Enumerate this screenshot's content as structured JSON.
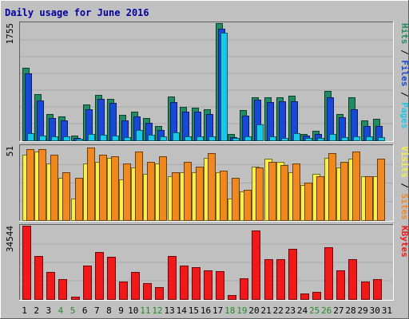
{
  "chart_data": {
    "type": "bar",
    "title": "Daily usage for June 2016",
    "x_labels": [
      "1",
      "2",
      "3",
      "4",
      "5",
      "6",
      "7",
      "8",
      "9",
      "10",
      "11",
      "12",
      "13",
      "14",
      "15",
      "16",
      "17",
      "18",
      "19",
      "20",
      "21",
      "22",
      "23",
      "24",
      "25",
      "26",
      "27",
      "28",
      "29",
      "30",
      "31"
    ],
    "weekend_days": [
      4,
      5,
      11,
      12,
      18,
      19,
      25,
      26
    ],
    "panels": [
      {
        "id": "requests",
        "max_label": "1755",
        "ymax": 1755,
        "side_label": [
          "Pages",
          "Files",
          "Hits"
        ],
        "series": [
          {
            "name": "Hits",
            "color": "#228B62",
            "values": [
              1090,
              690,
              390,
              360,
              75,
              540,
              680,
              620,
              380,
              430,
              330,
              210,
              660,
              500,
              490,
              460,
              1755,
              90,
              450,
              650,
              640,
              640,
              670,
              100,
              140,
              740,
              390,
              640,
              300,
              320,
              0
            ]
          },
          {
            "name": "Files",
            "color": "#1848D8",
            "values": [
              1000,
              600,
              330,
              300,
              40,
              460,
              620,
              560,
              300,
              360,
              260,
              160,
              570,
              430,
              430,
              390,
              1670,
              50,
              370,
              610,
              570,
              580,
              590,
              70,
              90,
              650,
              350,
              460,
              220,
              220,
              0
            ]
          },
          {
            "name": "Pages",
            "color": "#18C8E8",
            "values": [
              110,
              70,
              60,
              60,
              20,
              100,
              80,
              70,
              50,
              160,
              80,
              60,
              120,
              60,
              60,
              60,
              1610,
              30,
              60,
              240,
              60,
              40,
              110,
              30,
              40,
              90,
              50,
              60,
              60,
              50,
              0
            ]
          }
        ]
      },
      {
        "id": "visits",
        "max_label": "51",
        "ymax": 51,
        "side_label": [
          "Sites",
          "Visits"
        ],
        "series": [
          {
            "name": "Visits",
            "color": "#F8F048",
            "values": [
              45,
              47,
              39,
              29,
              15,
              39,
              40,
              43,
              28,
              36,
              32,
              39,
              30,
              33,
              33,
              43,
              33,
              15,
              20,
              37,
              42,
              40,
              33,
              24,
              32,
              43,
              36,
              42,
              30,
              30,
              0
            ]
          },
          {
            "name": "Sites",
            "color": "#F08820",
            "values": [
              49,
              49,
              45,
              33,
              29,
              50,
              45,
              44,
              39,
              47,
              40,
              44,
              33,
              40,
              37,
              46,
              34,
              29,
              21,
              36,
              40,
              38,
              39,
              26,
              30,
              46,
              40,
              47,
              30,
              42,
              0
            ]
          }
        ]
      },
      {
        "id": "kbytes",
        "max_label": "34544",
        "ymax": 34544,
        "side_label": [
          "KBytes"
        ],
        "series": [
          {
            "name": "KBytes",
            "color": "#F01818",
            "values": [
              34544,
              20300,
              12800,
              9500,
              1200,
              15800,
              22200,
              19800,
              8400,
              12600,
              7600,
              5600,
              20300,
              15900,
              14900,
              13600,
              13100,
              1700,
              9800,
              32400,
              18900,
              18900,
              23800,
              2600,
              3400,
              24500,
              13600,
              18600,
              8400,
              9300,
              0
            ]
          }
        ]
      }
    ]
  },
  "colors": {
    "background": "#C0C0C0",
    "title": "#0000A0",
    "axis_text": "#000000",
    "weekend_text": "#228B22"
  }
}
